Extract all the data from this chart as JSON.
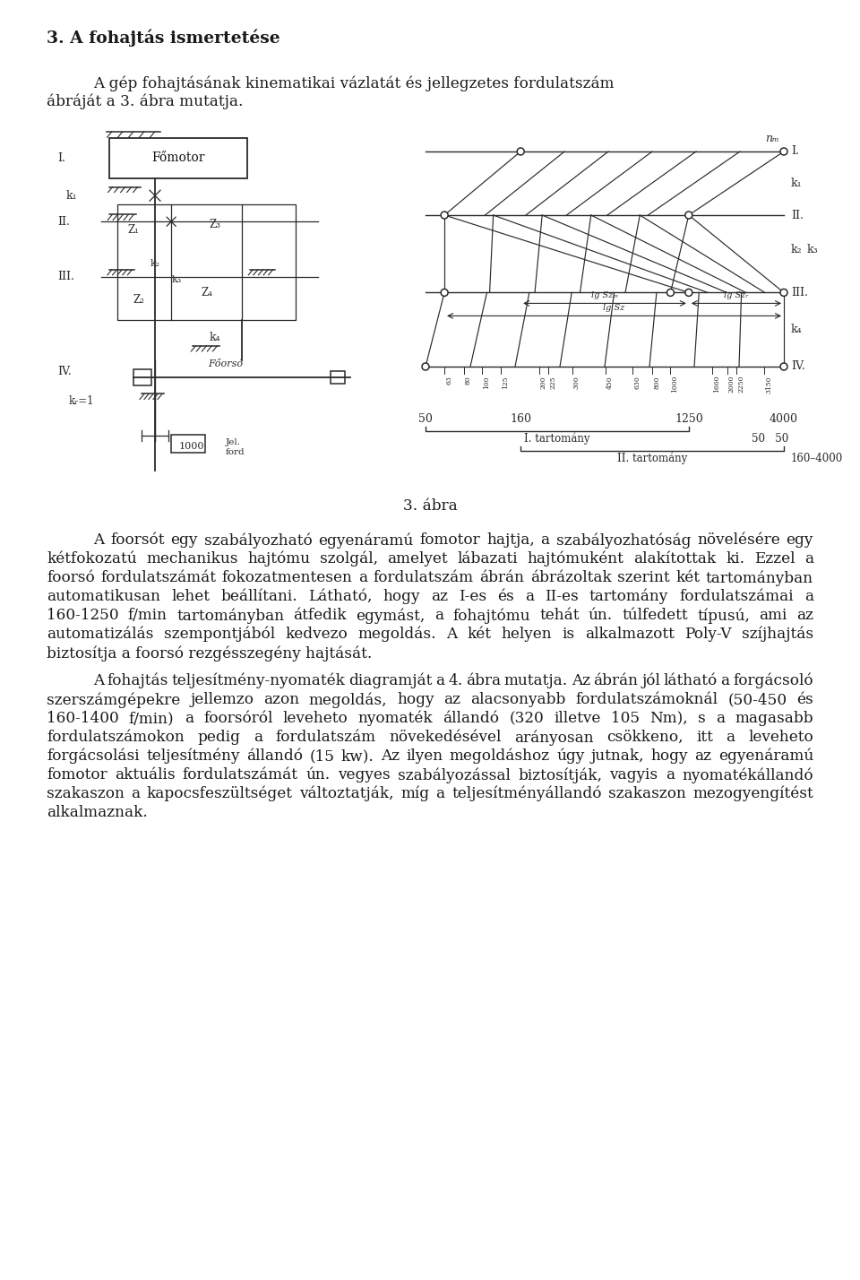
{
  "title": "3. A fohajtás ismertetése",
  "paragraph1_line1": "A gép fohajtásának kinematikai vázlatát és jellegzetes fordulatszám",
  "paragraph1_line2": "ábráját a 3. ábra mutatja.",
  "figure_caption": "3. ábra",
  "paragraph2": "A foorsót egy szabályozható egyenáramú fomotor hajtja, a szabályozhatóság növelésére egy kétfokozatú mechanikus hajtómu szolgál, amelyet lábazati hajtómuként alakítottak ki. Ezzel a foorsó fordulatszámát fokozatmentesen a fordulatszám ábrán ábrázoltak szerint két tartományban automatikusan lehet beállítani. Látható, hogy az I-es és a II-es tartomány fordulatszámai a 160-1250 f/min tartományban átfedik egymást, a fohajtómu tehát ún. túlfedett típusú, ami az automatizálás szempontjából kedvezo megoldás. A két helyen is alkalmazott Poly-V szíjhajtás biztosítja a foorsó rezgésszegény hajtását.",
  "paragraph3": "A fohajtás teljesítmény-nyomaték diagramját a 4. ábra mutatja. Az ábrán jól látható a forgácsoló szerszámgépekre jellemzo azon megoldás, hogy az alacsonyabb fordulatszámoknál (50-450 és 160-1400 f/min) a foorsóról leveheto nyomaték állandó (320 illetve 105 Nm), s a magasabb fordulatszámokon pedig a fordulatszám növekedésével arányosan csökkeno, itt a leveheto forgácsolási teljesítmény állandó (15 kw). Az ilyen megoldáshoz úgy jutnak, hogy az egyenáramú fomotor aktuális fordulatszámát ún. vegyes szabályozással biztosítják, vagyis a nyomatékállandó szakaszon a kapocsfeszültséget változtatják, míg a teljesítményállandó szakaszon mezogyengítést alkalmaznak.",
  "text_color": "#1a1a1a",
  "font_size_title": 13.5,
  "font_size_body": 12.2,
  "font_size_caption": 12.2
}
